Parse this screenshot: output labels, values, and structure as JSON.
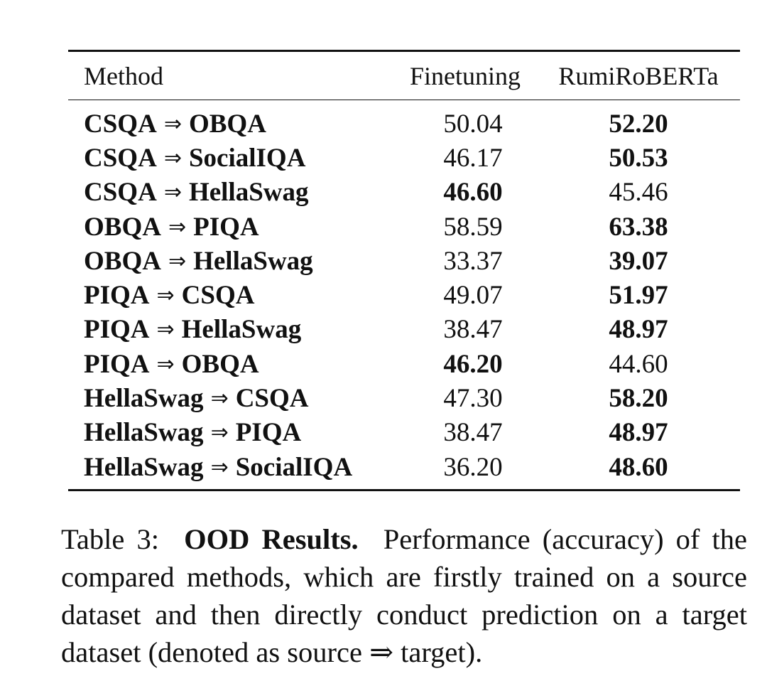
{
  "table": {
    "headers": {
      "method": "Method",
      "finetuning": "Finetuning",
      "rumiroberta": "RumiRoBERTa"
    },
    "arrow": "⇒",
    "rows": [
      {
        "source": "CSQA",
        "target": "OBQA",
        "finetuning": "50.04",
        "rumiroberta": "52.20",
        "best": "rumiroberta"
      },
      {
        "source": "CSQA",
        "target": "SocialIQA",
        "finetuning": "46.17",
        "rumiroberta": "50.53",
        "best": "rumiroberta"
      },
      {
        "source": "CSQA",
        "target": "HellaSwag",
        "finetuning": "46.60",
        "rumiroberta": "45.46",
        "best": "finetuning"
      },
      {
        "source": "OBQA",
        "target": "PIQA",
        "finetuning": "58.59",
        "rumiroberta": "63.38",
        "best": "rumiroberta"
      },
      {
        "source": "OBQA",
        "target": "HellaSwag",
        "finetuning": "33.37",
        "rumiroberta": "39.07",
        "best": "rumiroberta"
      },
      {
        "source": "PIQA",
        "target": "CSQA",
        "finetuning": "49.07",
        "rumiroberta": "51.97",
        "best": "rumiroberta"
      },
      {
        "source": "PIQA",
        "target": "HellaSwag",
        "finetuning": "38.47",
        "rumiroberta": "48.97",
        "best": "rumiroberta"
      },
      {
        "source": "PIQA",
        "target": "OBQA",
        "finetuning": "46.20",
        "rumiroberta": "44.60",
        "best": "finetuning"
      },
      {
        "source": "HellaSwag",
        "target": "CSQA",
        "finetuning": "47.30",
        "rumiroberta": "58.20",
        "best": "rumiroberta"
      },
      {
        "source": "HellaSwag",
        "target": "PIQA",
        "finetuning": "38.47",
        "rumiroberta": "48.97",
        "best": "rumiroberta"
      },
      {
        "source": "HellaSwag",
        "target": "SocialIQA",
        "finetuning": "36.20",
        "rumiroberta": "48.60",
        "best": "rumiroberta"
      }
    ]
  },
  "caption": {
    "label": "Table 3:",
    "title": "OOD Results.",
    "text": "Performance (accuracy) of the compared methods, which are firstly trained on a source dataset and then directly conduct prediction on a target dataset (denoted as source ⇒ target)."
  }
}
